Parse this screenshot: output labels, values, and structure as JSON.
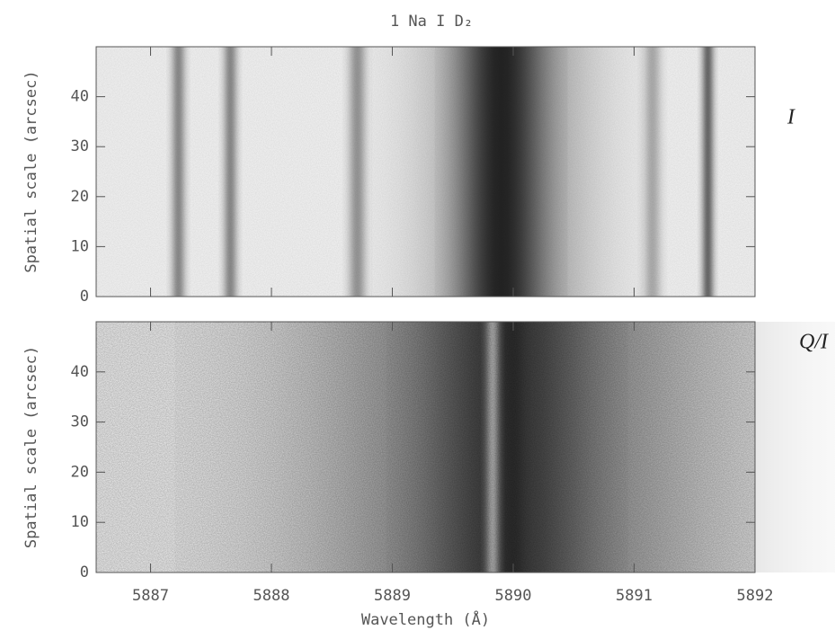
{
  "chart_data": [
    {
      "type": "spectrum",
      "title": "1 Na I D₂",
      "label": "I",
      "ylabel": "Spatial scale (arcsec)",
      "xlim": [
        5886.55,
        5892.0
      ],
      "ylim": [
        0,
        50
      ],
      "yticks": [
        0,
        10,
        20,
        30,
        40
      ],
      "x": [
        5887.23,
        5887.66,
        5888.71,
        5889.95,
        5889.9,
        5891.15,
        5891.61
      ],
      "widths": [
        0.04,
        0.04,
        0.05,
        0.45,
        0.22,
        0.05,
        0.035
      ],
      "values": [
        0.45,
        0.45,
        0.4,
        0.45,
        0.85,
        0.3,
        0.6
      ]
    },
    {
      "type": "spectrum",
      "label": "Q/I",
      "ylabel": "Spatial scale (arcsec)",
      "xlabel": "Wavelength (Å)",
      "xlim": [
        5886.55,
        5892.0
      ],
      "xticks": [
        5887,
        5888,
        5889,
        5890,
        5891,
        5892
      ],
      "ylim": [
        0,
        50
      ],
      "yticks": [
        0,
        10,
        20,
        30,
        40
      ],
      "x": [
        5889.95,
        5889.95,
        5889.83,
        5890.0
      ],
      "widths": [
        1.1,
        0.4,
        0.04,
        0.06
      ],
      "values": [
        0.55,
        0.6,
        -0.6,
        0.3
      ]
    }
  ]
}
